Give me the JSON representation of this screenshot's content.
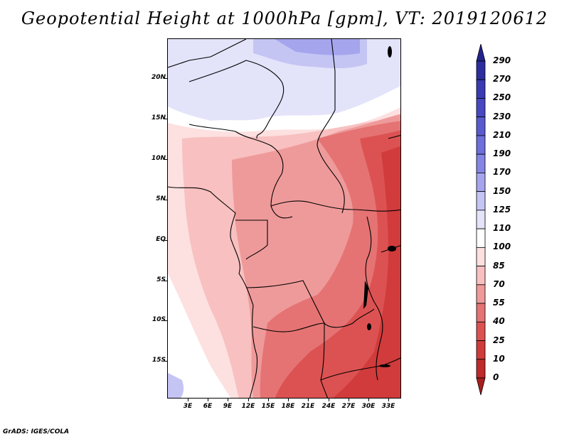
{
  "title": "Geopotential Height at 1000hPa [gpm], VT: 2019120612",
  "credit": "GrADS: IGES/COLA",
  "map": {
    "variable": "Geopotential Height",
    "level": "1000hPa",
    "units": "gpm",
    "valid_time": "2019120612",
    "lat_ticks": [
      "20N",
      "15N",
      "10N",
      "5N",
      "EQ",
      "5S",
      "10S",
      "15S"
    ],
    "lon_ticks": [
      "3E",
      "6E",
      "9E",
      "12E",
      "15E",
      "18E",
      "21E",
      "24E",
      "27E",
      "30E",
      "33E"
    ]
  },
  "colorbar": {
    "levels": [
      "290",
      "270",
      "250",
      "230",
      "210",
      "190",
      "170",
      "150",
      "125",
      "110",
      "100",
      "85",
      "70",
      "55",
      "40",
      "25",
      "10",
      "0"
    ],
    "colors": [
      "#23238c",
      "#2d2da0",
      "#3a3ab4",
      "#4848c3",
      "#5a5ad0",
      "#6e6edc",
      "#8585e6",
      "#a5a5ee",
      "#c5c5f4",
      "#e3e3fa",
      "#ffffff",
      "#fde0e0",
      "#f8c0c0",
      "#ef9a9a",
      "#e57373",
      "#dc5252",
      "#d13b3b",
      "#bf2a2a",
      "#a81e1e"
    ]
  }
}
